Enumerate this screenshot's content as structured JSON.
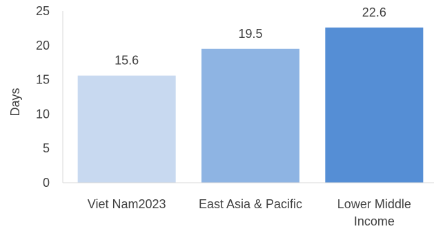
{
  "chart_data": {
    "type": "bar",
    "categories": [
      [
        "Viet Nam2023"
      ],
      [
        "East Asia & Pacific"
      ],
      [
        "Lower Middle",
        "Income"
      ]
    ],
    "values": [
      15.6,
      19.5,
      22.6
    ],
    "data_labels": [
      "15.6",
      "19.5",
      "22.6"
    ],
    "ylabel": "Days",
    "xlabel": "",
    "title": "",
    "ylim": [
      0,
      25
    ],
    "yticks": [
      0,
      5,
      10,
      15,
      20,
      25
    ],
    "grid": false,
    "legend": "none",
    "colors": [
      "#c8d9f0",
      "#8eb4e3",
      "#558ed5"
    ]
  }
}
